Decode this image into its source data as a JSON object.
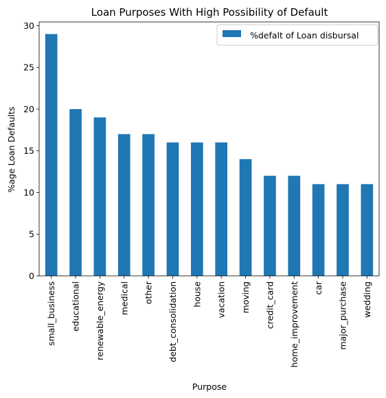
{
  "chart_data": {
    "type": "bar",
    "title": "Loan Purposes With High Possibility of Default",
    "xlabel": "Purpose",
    "ylabel": "%age Loan Defaults",
    "categories": [
      "small_business",
      "educational",
      "renewable_energy",
      "medical",
      "other",
      "debt_consolidation",
      "house",
      "vacation",
      "moving",
      "credit_card",
      "home_improvement",
      "car",
      "major_purchase",
      "wedding"
    ],
    "series": [
      {
        "name": "%defalt of Loan disbursal",
        "values": [
          29,
          20,
          19,
          17,
          17,
          16,
          16,
          16,
          14,
          12,
          12,
          11,
          11,
          11
        ],
        "color": "#1f77b4"
      }
    ],
    "ylim": [
      0,
      30.45
    ],
    "yticks": [
      0,
      5,
      10,
      15,
      20,
      25,
      30
    ],
    "grid": false,
    "legend_position": "top-right"
  }
}
